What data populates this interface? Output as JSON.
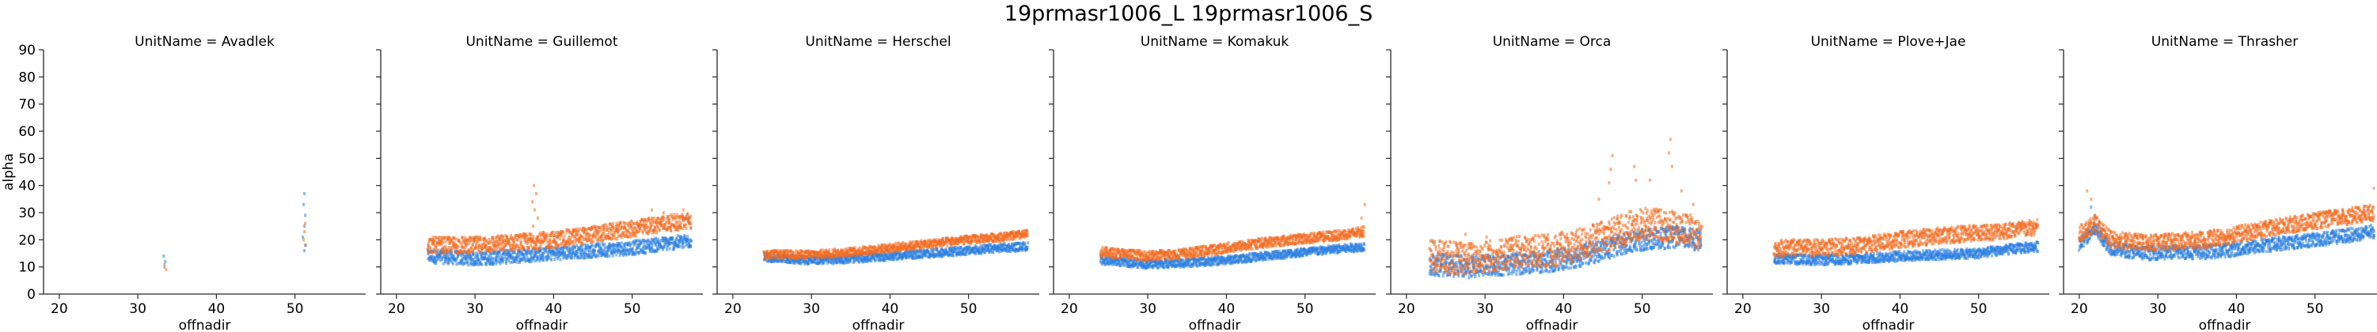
{
  "figure": {
    "title": "19prmasr1006_L 19prmasr1006_S"
  },
  "colors": {
    "series_L": "#2b7fe0",
    "series_S": "#f26b21",
    "axis": "#262626"
  },
  "chart_data": {
    "type": "scatter",
    "facet_layout": "1 row x 7 columns, shared y axis",
    "xlabel": "offnadir",
    "ylabel": "alpha",
    "xlim": [
      18,
      59
    ],
    "ylim": [
      0,
      90
    ],
    "x_ticks": [
      20,
      30,
      40,
      50
    ],
    "y_ticks": [
      0,
      10,
      20,
      30,
      40,
      50,
      60,
      70,
      80,
      90
    ],
    "grid": false,
    "legend": "none",
    "series_keys": [
      "19prmasr1006_L",
      "19prmasr1006_S"
    ],
    "facets": [
      {
        "title": "UnitName = Avadlek",
        "series": [
          {
            "key": "19prmasr1006_L",
            "color": "#2b7fe0",
            "points": [
              [
                33.3,
                14
              ],
              [
                33.5,
                12
              ],
              [
                33.4,
                10
              ],
              [
                51.2,
                37
              ],
              [
                51.1,
                33
              ],
              [
                51.3,
                29
              ],
              [
                51.2,
                25
              ],
              [
                51.0,
                21
              ],
              [
                51.3,
                18
              ],
              [
                51.2,
                16
              ]
            ]
          },
          {
            "key": "19prmasr1006_S",
            "color": "#f26b21",
            "points": [
              [
                33.4,
                11
              ],
              [
                33.6,
                9
              ],
              [
                51.3,
                26
              ],
              [
                51.2,
                23
              ],
              [
                51.1,
                20
              ],
              [
                51.4,
                18
              ]
            ]
          }
        ]
      },
      {
        "title": "UnitName = Guillemot",
        "series": [
          {
            "key": "19prmasr1006_L",
            "color": "#2b7fe0",
            "curve": [
              [
                24,
                14
              ],
              [
                30,
                13
              ],
              [
                35,
                14
              ],
              [
                40,
                15
              ],
              [
                45,
                16
              ],
              [
                50,
                17
              ],
              [
                54,
                18.5
              ],
              [
                57.5,
                19.5
              ]
            ],
            "spread": 2.5
          },
          {
            "key": "19prmasr1006_S",
            "color": "#f26b21",
            "curve": [
              [
                24,
                18
              ],
              [
                30,
                18
              ],
              [
                35,
                19
              ],
              [
                40,
                20
              ],
              [
                45,
                22
              ],
              [
                50,
                24
              ],
              [
                54,
                26
              ],
              [
                57.5,
                27
              ]
            ],
            "spread": 3,
            "extra_points": [
              [
                37.5,
                40
              ],
              [
                37.8,
                37
              ],
              [
                37.3,
                34
              ],
              [
                37.6,
                31
              ],
              [
                38.0,
                28
              ],
              [
                37.4,
                25
              ],
              [
                52.5,
                31
              ],
              [
                54.0,
                30
              ],
              [
                56.5,
                31
              ]
            ]
          }
        ]
      },
      {
        "title": "UnitName = Herschel",
        "series": [
          {
            "key": "19prmasr1006_L",
            "color": "#2b7fe0",
            "curve": [
              [
                24,
                13.5
              ],
              [
                30,
                12.5
              ],
              [
                35,
                13
              ],
              [
                40,
                14
              ],
              [
                45,
                15
              ],
              [
                50,
                16
              ],
              [
                54,
                17
              ],
              [
                57.5,
                17.5
              ]
            ],
            "spread": 1.5
          },
          {
            "key": "19prmasr1006_S",
            "color": "#f26b21",
            "curve": [
              [
                24,
                14.5
              ],
              [
                30,
                14.5
              ],
              [
                35,
                15.5
              ],
              [
                40,
                17
              ],
              [
                45,
                18.5
              ],
              [
                50,
                20
              ],
              [
                54,
                21
              ],
              [
                57.5,
                22
              ]
            ],
            "spread": 1.5
          }
        ]
      },
      {
        "title": "UnitName = Komakuk",
        "series": [
          {
            "key": "19prmasr1006_L",
            "color": "#2b7fe0",
            "curve": [
              [
                24,
                12.5
              ],
              [
                30,
                11
              ],
              [
                35,
                11.5
              ],
              [
                40,
                12.5
              ],
              [
                45,
                14
              ],
              [
                50,
                15.5
              ],
              [
                54,
                16.5
              ],
              [
                57.5,
                17.5
              ]
            ],
            "spread": 1.5
          },
          {
            "key": "19prmasr1006_S",
            "color": "#f26b21",
            "curve": [
              [
                24,
                15.5
              ],
              [
                30,
                14
              ],
              [
                35,
                15
              ],
              [
                40,
                17
              ],
              [
                45,
                19
              ],
              [
                50,
                20.5
              ],
              [
                54,
                21.5
              ],
              [
                57.5,
                23
              ]
            ],
            "spread": 1.8,
            "extra_points": [
              [
                57.6,
                33
              ],
              [
                57.2,
                28
              ]
            ]
          }
        ]
      },
      {
        "title": "UnitName = Orca",
        "series": [
          {
            "key": "19prmasr1006_L",
            "color": "#2b7fe0",
            "curve": [
              [
                23,
                11
              ],
              [
                28,
                10
              ],
              [
                33,
                11
              ],
              [
                38,
                12
              ],
              [
                42,
                14
              ],
              [
                46,
                17
              ],
              [
                50,
                20
              ],
              [
                54,
                21
              ],
              [
                57.5,
                20
              ]
            ],
            "spread": 4
          },
          {
            "key": "19prmasr1006_S",
            "color": "#f26b21",
            "curve": [
              [
                23,
                14
              ],
              [
                28,
                13
              ],
              [
                33,
                15
              ],
              [
                38,
                16
              ],
              [
                42,
                18
              ],
              [
                46,
                22
              ],
              [
                50,
                26
              ],
              [
                54,
                25
              ],
              [
                57.5,
                22
              ]
            ],
            "spread": 6,
            "extra_points": [
              [
                46.2,
                51
              ],
              [
                46.0,
                46
              ],
              [
                45.8,
                41
              ],
              [
                49.0,
                47
              ],
              [
                49.2,
                42
              ],
              [
                53.6,
                57
              ],
              [
                53.4,
                52
              ],
              [
                53.8,
                47
              ],
              [
                51.0,
                42
              ],
              [
                44.5,
                35
              ],
              [
                55.0,
                38
              ],
              [
                56.5,
                33
              ],
              [
                27.5,
                22
              ],
              [
                30.2,
                21
              ]
            ]
          }
        ]
      },
      {
        "title": "UnitName = Plove+Jae",
        "series": [
          {
            "key": "19prmasr1006_L",
            "color": "#2b7fe0",
            "curve": [
              [
                24,
                13
              ],
              [
                30,
                12.5
              ],
              [
                35,
                13
              ],
              [
                40,
                14
              ],
              [
                45,
                14.5
              ],
              [
                50,
                15
              ],
              [
                54,
                16.5
              ],
              [
                57.5,
                17.5
              ]
            ],
            "spread": 1.8
          },
          {
            "key": "19prmasr1006_S",
            "color": "#f26b21",
            "curve": [
              [
                24,
                17
              ],
              [
                30,
                17
              ],
              [
                35,
                18
              ],
              [
                40,
                20
              ],
              [
                45,
                21.5
              ],
              [
                50,
                22.5
              ],
              [
                54,
                23.5
              ],
              [
                57.5,
                24.5
              ]
            ],
            "spread": 3
          }
        ]
      },
      {
        "title": "UnitName = Thrasher",
        "series": [
          {
            "key": "19prmasr1006_L",
            "color": "#2b7fe0",
            "curve": [
              [
                20,
                18
              ],
              [
                22,
                24
              ],
              [
                24,
                17
              ],
              [
                28,
                15
              ],
              [
                32,
                15.5
              ],
              [
                36,
                15.5
              ],
              [
                40,
                16.5
              ],
              [
                45,
                18.5
              ],
              [
                50,
                20
              ],
              [
                54,
                21.5
              ],
              [
                57.5,
                23
              ]
            ],
            "spread": 2.5,
            "extra_points": [
              [
                21.5,
                32
              ],
              [
                22.0,
                29
              ]
            ]
          },
          {
            "key": "19prmasr1006_S",
            "color": "#f26b21",
            "curve": [
              [
                20,
                22
              ],
              [
                22,
                26
              ],
              [
                24,
                20
              ],
              [
                28,
                19
              ],
              [
                32,
                19.5
              ],
              [
                36,
                20
              ],
              [
                40,
                22
              ],
              [
                45,
                24.5
              ],
              [
                50,
                27
              ],
              [
                54,
                28.5
              ],
              [
                57.5,
                30
              ]
            ],
            "spread": 3,
            "extra_points": [
              [
                21.0,
                38
              ],
              [
                21.5,
                35
              ],
              [
                57.5,
                39
              ]
            ]
          }
        ]
      }
    ]
  }
}
